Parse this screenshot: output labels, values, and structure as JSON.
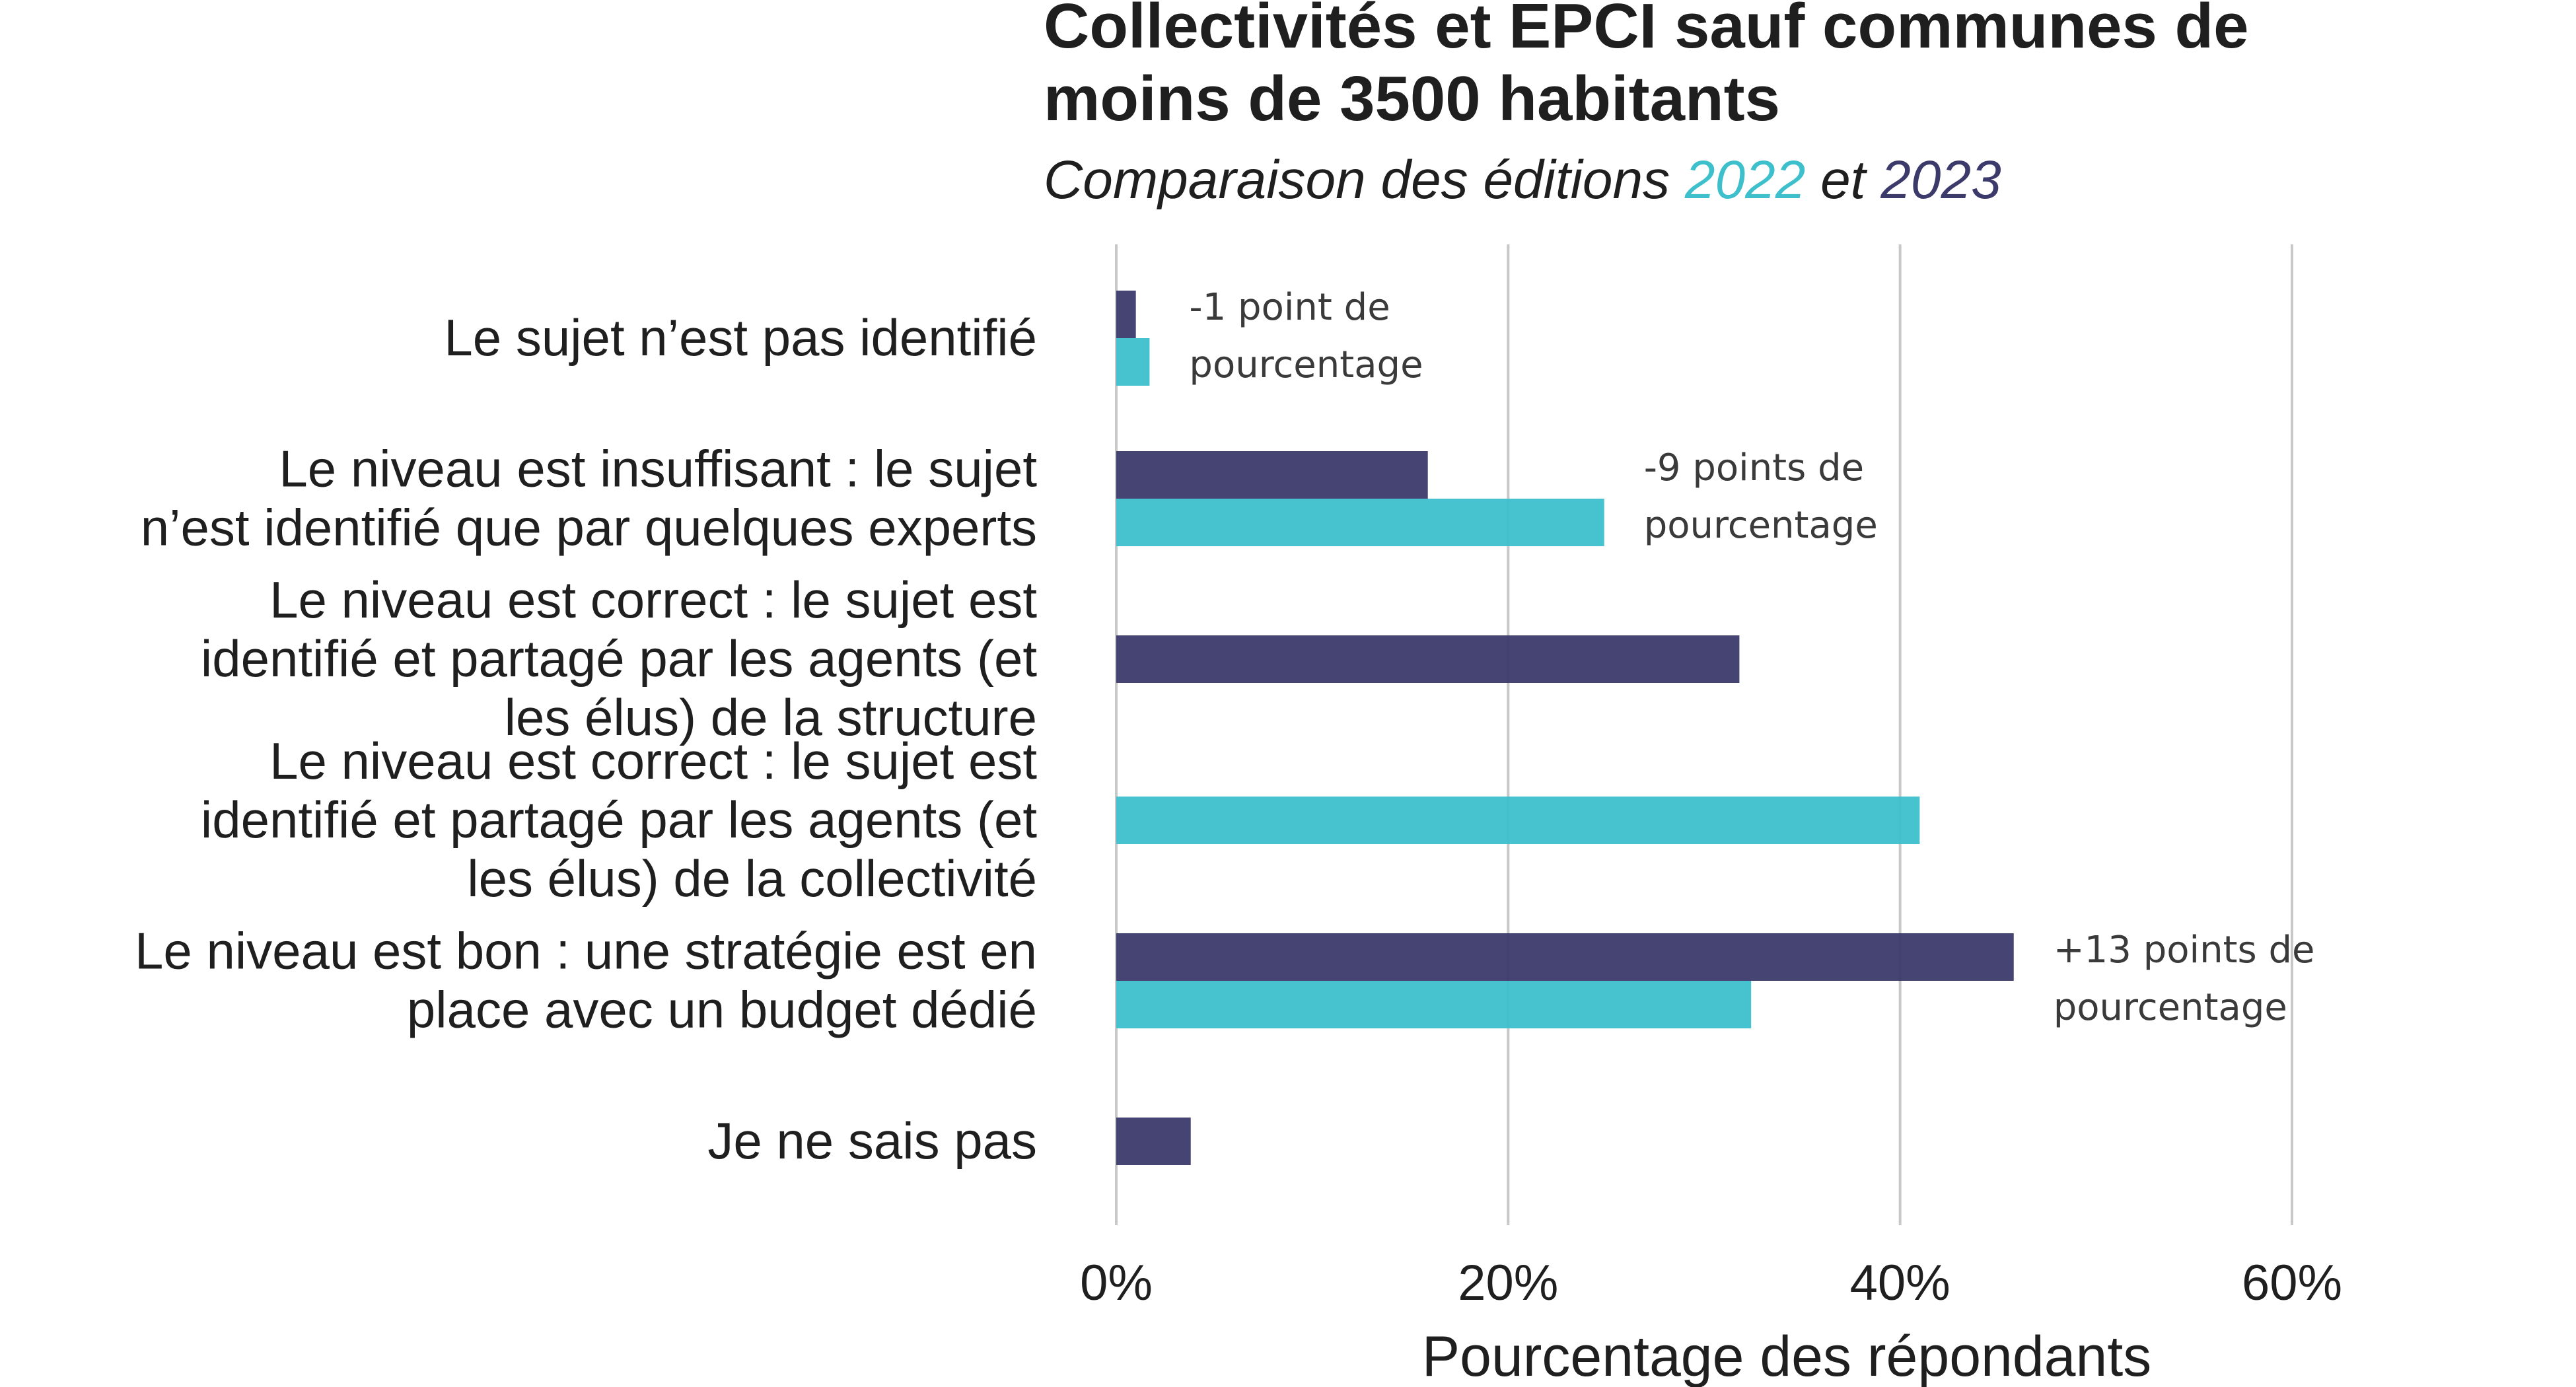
{
  "chart_data": {
    "type": "bar",
    "orientation": "horizontal",
    "title_lines": [
      "Collectivités et EPCI sauf communes de",
      "moins de 3500 habitants"
    ],
    "subtitle": {
      "prefix": "Comparaison des éditions ",
      "year_a": "2022",
      "middle": " et ",
      "year_b": "2023"
    },
    "xlabel": "Pourcentage des répondants",
    "ylabel": "",
    "xlim": [
      0,
      60
    ],
    "ticks": [
      {
        "value": 0,
        "label": "0%"
      },
      {
        "value": 20,
        "label": "20%"
      },
      {
        "value": 40,
        "label": "40%"
      },
      {
        "value": 60,
        "label": "60%"
      }
    ],
    "grid": true,
    "series": [
      {
        "name": "2023",
        "color": "#3b3a6b"
      },
      {
        "name": "2022",
        "color": "#3dbfcc"
      }
    ],
    "categories": [
      {
        "label_lines": [
          "Le sujet n’est pas identifié"
        ],
        "v2023": 1.0,
        "v2022": 1.7,
        "annotation_lines": [
          "-1 point de",
          "pourcentage"
        ]
      },
      {
        "label_lines": [
          "Le niveau est insuffisant : le sujet",
          "n’est identifié que par quelques experts"
        ],
        "v2023": 15.9,
        "v2022": 24.9,
        "annotation_lines": [
          "-9 points de",
          "pourcentage"
        ]
      },
      {
        "label_lines": [
          "Le niveau est correct : le sujet est",
          "identifié et partagé par les agents (et",
          "les élus) de la structure"
        ],
        "v2023": 31.8,
        "v2022": null,
        "annotation_lines": []
      },
      {
        "label_lines": [
          "Le niveau est correct : le sujet est",
          "identifié et partagé par les agents (et",
          "les élus) de la collectivité"
        ],
        "v2023": null,
        "v2022": 41.0,
        "annotation_lines": []
      },
      {
        "label_lines": [
          "Le niveau est bon : une stratégie est en",
          "place avec un budget dédié"
        ],
        "v2023": 45.8,
        "v2022": 32.4,
        "annotation_lines": [
          "+13 points de",
          "pourcentage"
        ]
      },
      {
        "label_lines": [
          "Je ne sais pas"
        ],
        "v2023": 3.8,
        "v2022": null,
        "annotation_lines": []
      }
    ]
  }
}
